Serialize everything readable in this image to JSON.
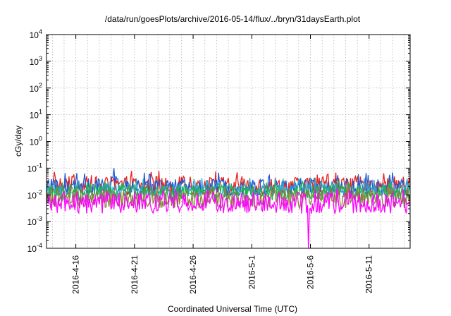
{
  "chart_data": {
    "type": "line",
    "title": "/data/run/goesPlots/archive/2016-05-14/flux/../bryn/31daysEarth.plot",
    "xlabel": "Coordinated Universal Time (UTC)",
    "ylabel": "cGy/day",
    "yscale": "log",
    "ylim": [
      0.0001,
      10000
    ],
    "y_ticks": [
      {
        "value": 0.0001,
        "base": "10",
        "exp": "-4"
      },
      {
        "value": 0.001,
        "base": "10",
        "exp": "-3"
      },
      {
        "value": 0.01,
        "base": "10",
        "exp": "-2"
      },
      {
        "value": 0.1,
        "base": "10",
        "exp": "-1"
      },
      {
        "value": 1,
        "base": "10",
        "exp": "0"
      },
      {
        "value": 10,
        "base": "10",
        "exp": "1"
      },
      {
        "value": 100,
        "base": "10",
        "exp": "2"
      },
      {
        "value": 1000,
        "base": "10",
        "exp": "3"
      },
      {
        "value": 10000,
        "base": "10",
        "exp": "4"
      }
    ],
    "xlim": [
      "2016-04-13T12:00",
      "2016-05-14T12:00"
    ],
    "x_ticks": [
      {
        "value": "2016-04-16",
        "label": "2016-4-16"
      },
      {
        "value": "2016-04-21",
        "label": "2016-4-21"
      },
      {
        "value": "2016-04-26",
        "label": "2016-4-26"
      },
      {
        "value": "2016-05-01",
        "label": "2016-5-1"
      },
      {
        "value": "2016-05-06",
        "label": "2016-5-6"
      },
      {
        "value": "2016-05-11",
        "label": "2016-5-11"
      }
    ],
    "grid": true,
    "sample_interval_hours": 2,
    "series": [
      {
        "color": "#e8221c",
        "baseline": 0.022,
        "noise": 0.35,
        "spike": 0.06
      },
      {
        "color": "#1f5bd6",
        "baseline": 0.019,
        "noise": 0.32,
        "spike": 0.055
      },
      {
        "color": "#2aa8c8",
        "baseline": 0.015,
        "noise": 0.25,
        "spike": 0.03
      },
      {
        "color": "#23b04a",
        "baseline": 0.012,
        "noise": 0.28,
        "spike": 0.02
      },
      {
        "color": "#8a7f3c",
        "baseline": 0.007,
        "noise": 0.35,
        "spike": 0.015
      },
      {
        "color": "#ff00ff",
        "baseline": 0.005,
        "noise": 0.4,
        "spike": 0.012
      }
    ],
    "events": [
      {
        "series": 1,
        "date": "2016-04-19T06:00",
        "value": 0.1
      },
      {
        "series": 5,
        "date": "2016-05-05T20:00",
        "value": 0.0001
      }
    ]
  }
}
